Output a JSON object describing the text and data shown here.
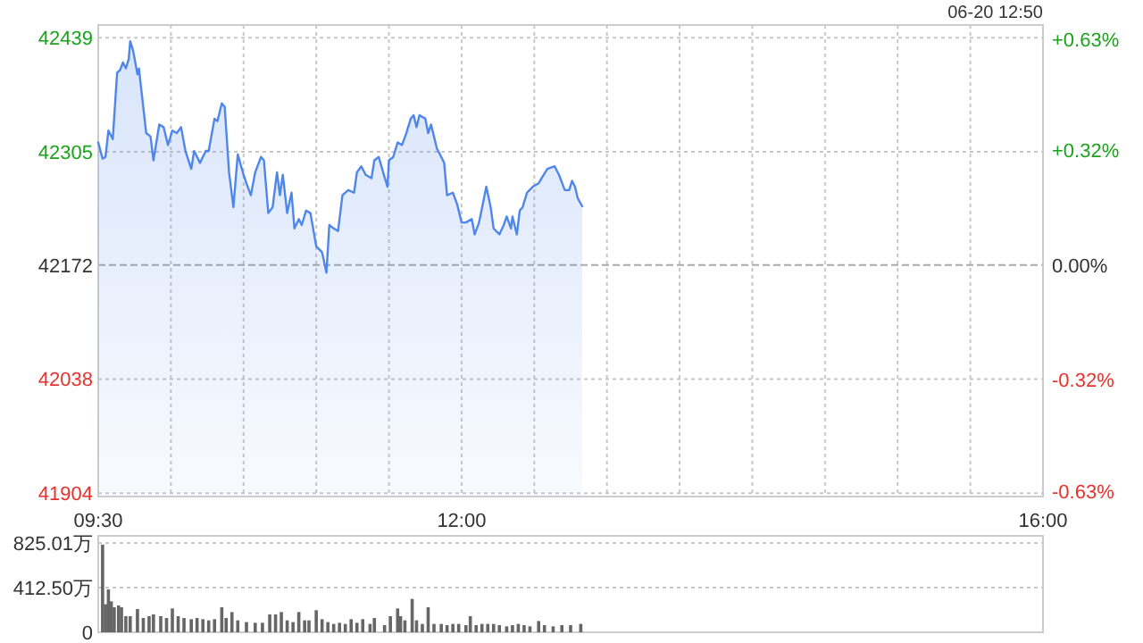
{
  "chart_data": [
    {
      "type": "area",
      "annotations": [
        "06-20 12:50"
      ],
      "color": "#4f86ec",
      "x": [
        9.5,
        9.53,
        9.55,
        9.57,
        9.6,
        9.63,
        9.65,
        9.67,
        9.69,
        9.71,
        9.72,
        9.74,
        9.77,
        9.78,
        9.83,
        9.86,
        9.88,
        9.92,
        9.95,
        9.98,
        10.01,
        10.04,
        10.07,
        10.1,
        10.14,
        10.16,
        10.2,
        10.24,
        10.26,
        10.3,
        10.32,
        10.35,
        10.37,
        10.4,
        10.43,
        10.46,
        10.5,
        10.52,
        10.55,
        10.58,
        10.62,
        10.64,
        10.67,
        10.7,
        10.73,
        10.75,
        10.77,
        10.8,
        10.83,
        10.85,
        10.88,
        10.9,
        10.93,
        10.96,
        11.0,
        11.04,
        11.07,
        11.09,
        11.12,
        11.15,
        11.18,
        11.22,
        11.26,
        11.28,
        11.31,
        11.34,
        11.38,
        11.4,
        11.43,
        11.46,
        11.49,
        11.5,
        11.53,
        11.56,
        11.59,
        11.62,
        11.65,
        11.67,
        11.69,
        11.71,
        11.75,
        11.77,
        11.79,
        11.81,
        11.83,
        11.86,
        11.88,
        11.9,
        11.94,
        11.97,
        12.0,
        12.03,
        12.07,
        12.09,
        12.12,
        12.15,
        12.17,
        12.2,
        12.22,
        12.26,
        12.29,
        12.31,
        12.34,
        12.35,
        12.38,
        12.4,
        12.42,
        12.45,
        12.49,
        12.53,
        12.55,
        12.59,
        12.64,
        12.67,
        12.71,
        12.74,
        12.76,
        12.78,
        12.8,
        12.83
      ],
      "values": [
        42316,
        42297,
        42299,
        42330,
        42320,
        42398,
        42401,
        42410,
        42403,
        42414,
        42435,
        42424,
        42396,
        42403,
        42327,
        42323,
        42295,
        42337,
        42334,
        42313,
        42330,
        42327,
        42334,
        42306,
        42285,
        42306,
        42292,
        42306,
        42306,
        42344,
        42341,
        42362,
        42358,
        42281,
        42240,
        42302,
        42278,
        42268,
        42254,
        42281,
        42299,
        42295,
        42233,
        42240,
        42281,
        42254,
        42278,
        42233,
        42257,
        42215,
        42226,
        42219,
        42236,
        42233,
        42194,
        42187,
        42163,
        42219,
        42215,
        42212,
        42254,
        42260,
        42257,
        42281,
        42288,
        42278,
        42274,
        42295,
        42299,
        42281,
        42264,
        42295,
        42299,
        42316,
        42313,
        42327,
        42344,
        42348,
        42334,
        42348,
        42344,
        42327,
        42337,
        42323,
        42309,
        42299,
        42292,
        42254,
        42257,
        42243,
        42222,
        42222,
        42226,
        42208,
        42222,
        42247,
        42264,
        42240,
        42215,
        42208,
        42219,
        42229,
        42215,
        42229,
        42208,
        42236,
        42240,
        42257,
        42264,
        42268,
        42274,
        42285,
        42288,
        42278,
        42260,
        42260,
        42271,
        42264,
        42250,
        42241
      ],
      "xlim": [
        9.5,
        16
      ],
      "ylim": [
        41900,
        42454
      ],
      "xticks": [
        {
          "value": 9.5,
          "label": "09:30"
        },
        {
          "value": 10,
          "label": null
        },
        {
          "value": 10.5,
          "label": null
        },
        {
          "value": 11,
          "label": null
        },
        {
          "value": 11.5,
          "label": null
        },
        {
          "value": 12,
          "label": "12:00"
        },
        {
          "value": 12.5,
          "label": null
        },
        {
          "value": 13,
          "label": null
        },
        {
          "value": 13.5,
          "label": null
        },
        {
          "value": 14,
          "label": null
        },
        {
          "value": 14.5,
          "label": null
        },
        {
          "value": 15,
          "label": null
        },
        {
          "value": 15.5,
          "label": null
        },
        {
          "value": 16,
          "label": "16:00"
        }
      ],
      "yticks": [
        41904,
        42038,
        42172,
        42305,
        42439
      ],
      "y2lim": [
        -0.645,
        0.669
      ],
      "y2ticks": [
        {
          "value": -0.63,
          "label": "-0.63%"
        },
        {
          "value": -0.32,
          "label": "-0.32%"
        },
        {
          "value": 0,
          "label": "0.00%"
        },
        {
          "value": 0.32,
          "label": "+0.32%"
        },
        {
          "value": 0.63,
          "label": "+0.63%"
        }
      ],
      "ref_lines": [
        {
          "axis": "y",
          "value": 42172
        }
      ],
      "grid": true
    },
    {
      "type": "bar",
      "color": "#666666",
      "x": [
        9.53,
        9.55,
        9.57,
        9.59,
        9.61,
        9.64,
        9.66,
        9.69,
        9.72,
        9.77,
        9.81,
        9.85,
        9.88,
        9.93,
        9.97,
        10.01,
        10.05,
        10.09,
        10.14,
        10.18,
        10.22,
        10.26,
        10.3,
        10.35,
        10.38,
        10.42,
        10.46,
        10.52,
        10.58,
        10.63,
        10.68,
        10.72,
        10.76,
        10.8,
        10.84,
        10.88,
        10.92,
        10.95,
        11.0,
        11.04,
        11.08,
        11.12,
        11.16,
        11.2,
        11.24,
        11.28,
        11.32,
        11.37,
        11.4,
        11.47,
        11.51,
        11.56,
        11.58,
        11.61,
        11.66,
        11.69,
        11.73,
        11.77,
        11.81,
        11.86,
        11.9,
        11.94,
        11.98,
        12.03,
        12.06,
        12.1,
        12.14,
        12.18,
        12.22,
        12.26,
        12.31,
        12.35,
        12.39,
        12.43,
        12.47,
        12.53,
        12.57,
        12.63,
        12.69,
        12.75,
        12.82
      ],
      "values": [
        810,
        259,
        396,
        286,
        231,
        248,
        231,
        149,
        149,
        215,
        132,
        149,
        165,
        149,
        132,
        220,
        149,
        132,
        121,
        132,
        121,
        110,
        121,
        231,
        132,
        187,
        110,
        94,
        88,
        88,
        165,
        165,
        187,
        110,
        94,
        187,
        110,
        110,
        204,
        121,
        94,
        77,
        88,
        77,
        121,
        88,
        121,
        77,
        132,
        66,
        149,
        220,
        149,
        110,
        308,
        110,
        77,
        231,
        77,
        77,
        66,
        77,
        77,
        66,
        149,
        66,
        77,
        77,
        77,
        66,
        55,
        66,
        77,
        66,
        55,
        104,
        66,
        55,
        66,
        66,
        77
      ],
      "xlim": [
        9.5,
        16
      ],
      "ylim": [
        0,
        891
      ],
      "yticks": [
        0,
        {
          "value": 412.5,
          "label": "412.50万"
        },
        {
          "value": 825.01,
          "label": "825.01万"
        }
      ],
      "grid": "y",
      "tick_labels": "y"
    }
  ]
}
